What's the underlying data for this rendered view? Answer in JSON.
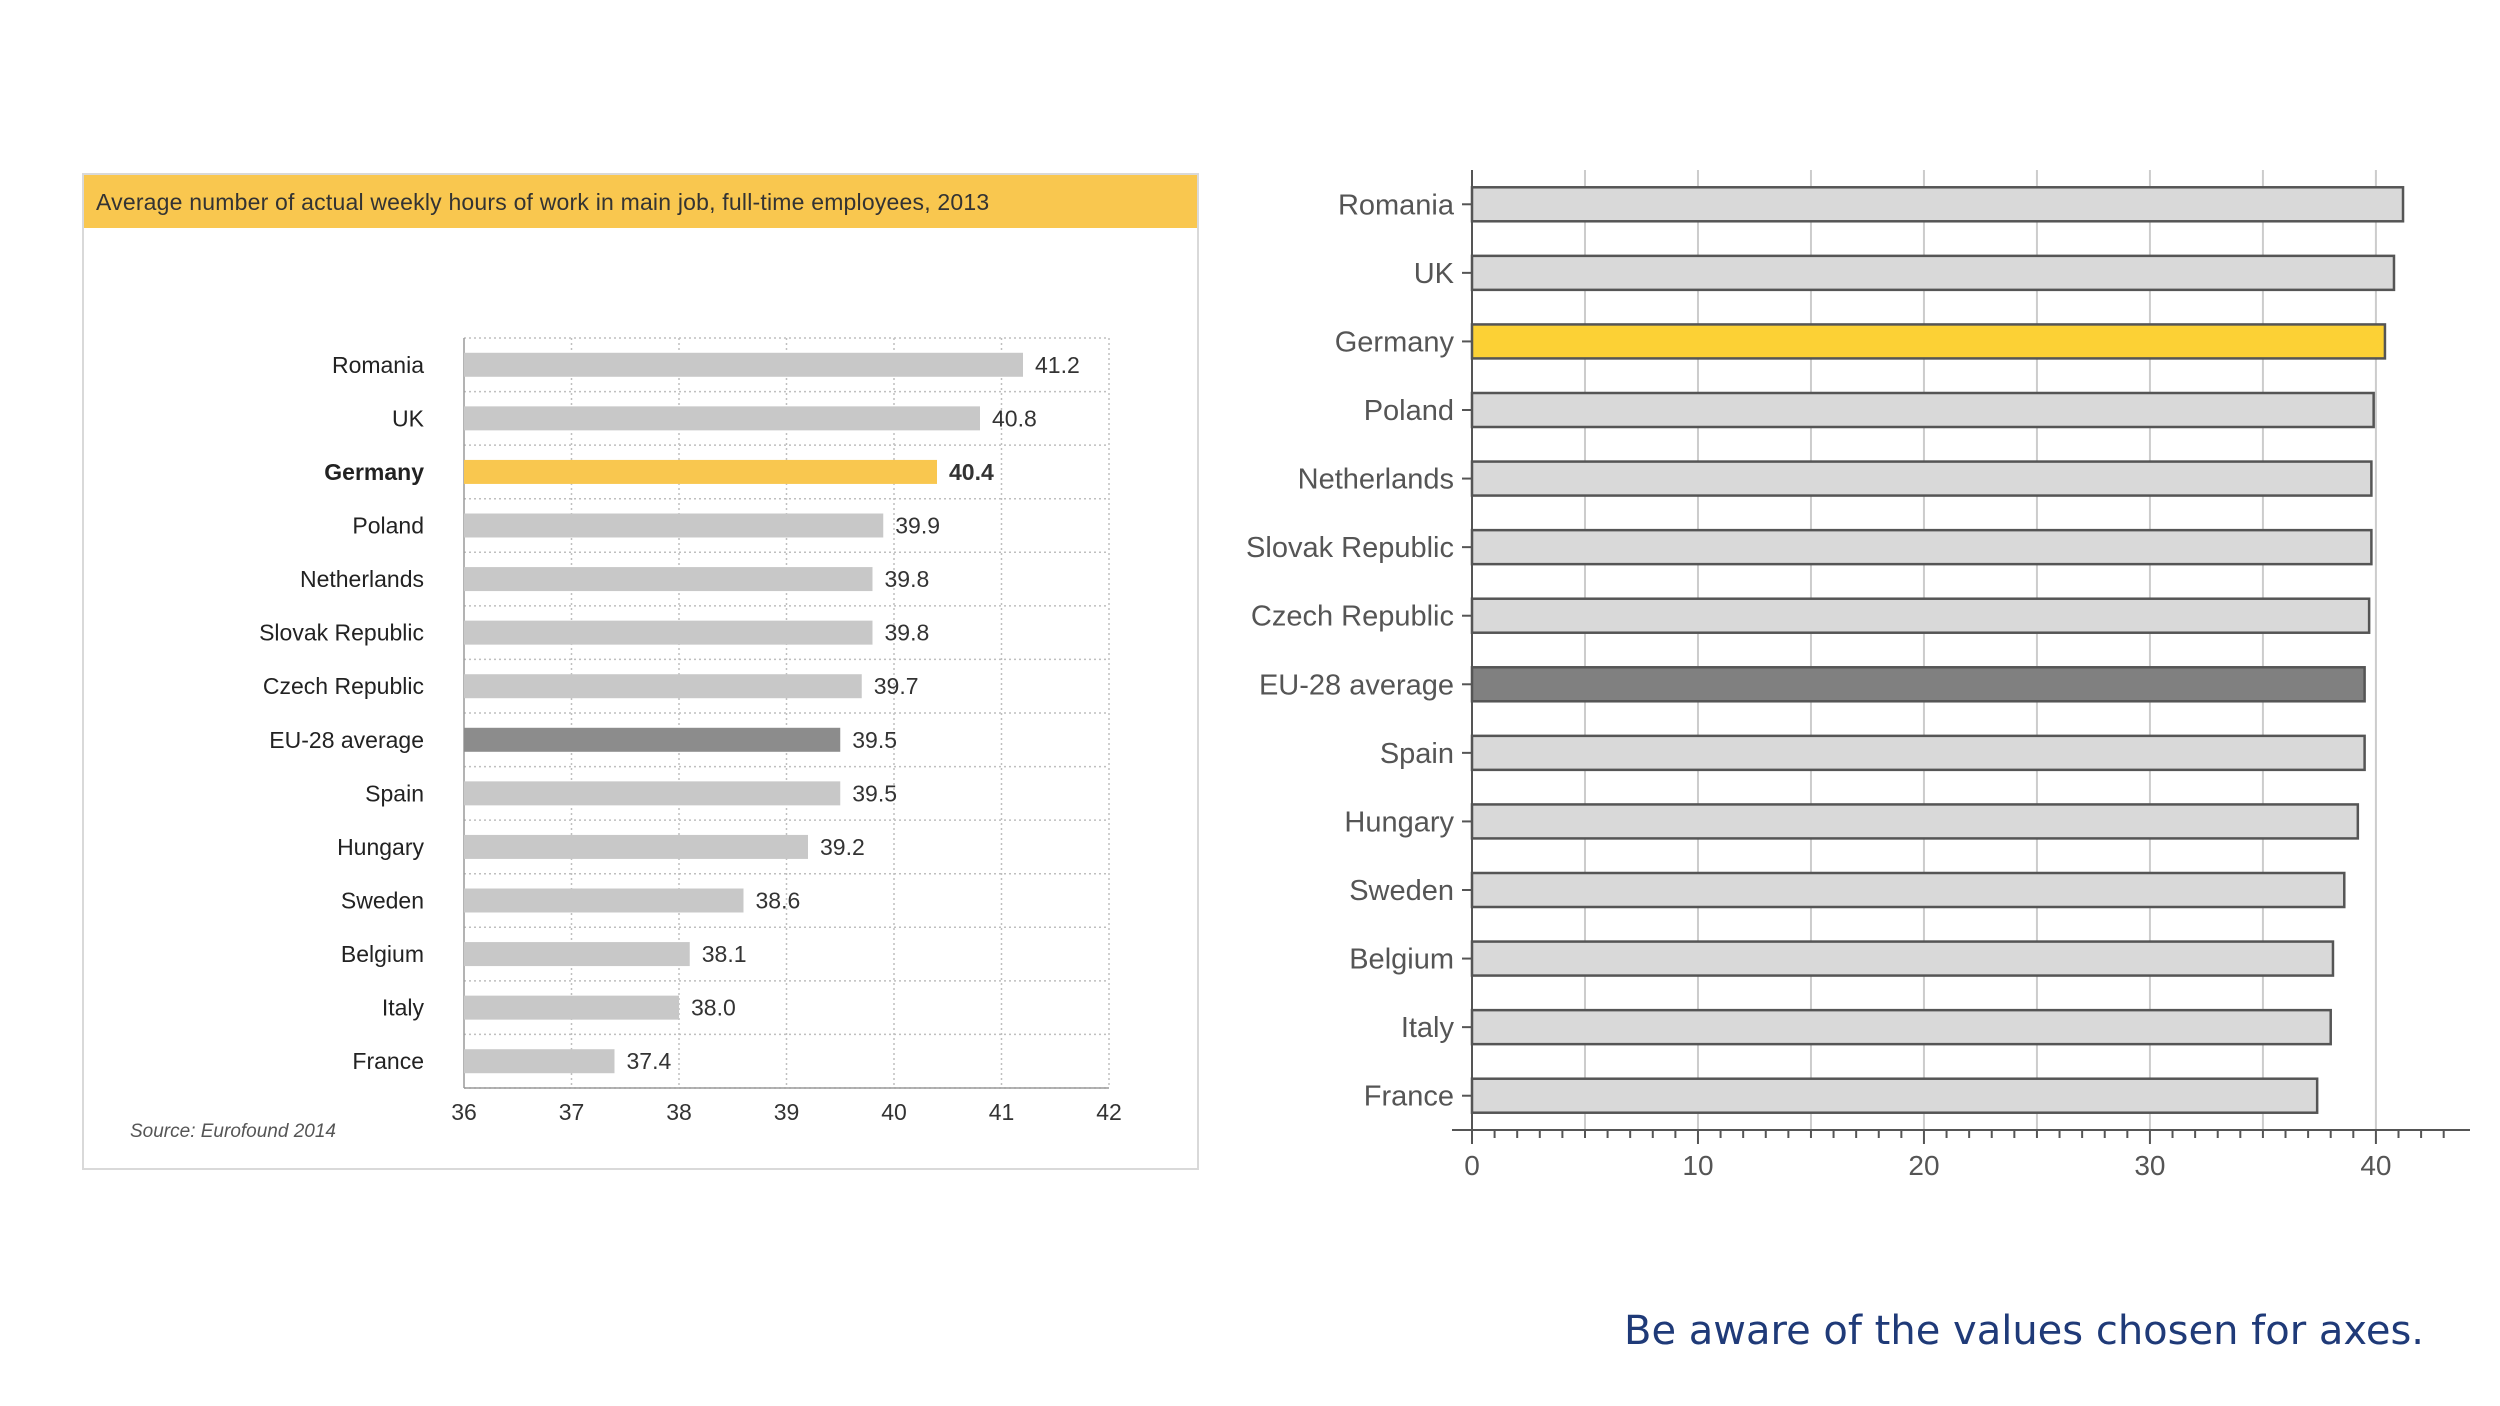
{
  "chart_data": [
    {
      "type": "bar",
      "orientation": "horizontal",
      "title": "Average number of actual weekly hours of work in main job, full-time employees, 2013",
      "categories": [
        "Romania",
        "UK",
        "Germany",
        "Poland",
        "Netherlands",
        "Slovak Republic",
        "Czech Republic",
        "EU-28 average",
        "Spain",
        "Hungary",
        "Sweden",
        "Belgium",
        "Italy",
        "France"
      ],
      "values": [
        41.2,
        40.8,
        40.4,
        39.9,
        39.8,
        39.8,
        39.7,
        39.5,
        39.5,
        39.2,
        38.6,
        38.1,
        38.0,
        37.4
      ],
      "value_labels": [
        "41.2",
        "40.8",
        "40.4",
        "39.9",
        "39.8",
        "39.8",
        "39.7",
        "39.5",
        "39.5",
        "39.2",
        "38.6",
        "38.1",
        "38.0",
        "37.4"
      ],
      "highlight": {
        "Germany": "#f9c74f",
        "EU-28 average": "#8c8c8c"
      },
      "xlim": [
        36,
        42
      ],
      "xticks": [
        "36",
        "37",
        "38",
        "39",
        "40",
        "41",
        "42"
      ],
      "grid": true,
      "source": "Source: Eurofound 2014",
      "colors": {
        "bar": "#c8c8c8",
        "title_band": "#f9c74f"
      }
    },
    {
      "type": "bar",
      "orientation": "horizontal",
      "categories": [
        "Romania",
        "UK",
        "Germany",
        "Poland",
        "Netherlands",
        "Slovak Republic",
        "Czech Republic",
        "EU-28 average",
        "Spain",
        "Hungary",
        "Sweden",
        "Belgium",
        "Italy",
        "France"
      ],
      "values": [
        41.2,
        40.8,
        40.4,
        39.9,
        39.8,
        39.8,
        39.7,
        39.5,
        39.5,
        39.2,
        38.6,
        38.1,
        38.0,
        37.4
      ],
      "highlight": {
        "Germany": "#fcd135",
        "EU-28 average": "#808080"
      },
      "xlim": [
        0,
        43.5
      ],
      "xticks": [
        "0",
        "10",
        "20",
        "30",
        "40"
      ],
      "grid": true,
      "colors": {
        "bar": "#d9d9d9",
        "border": "#555555"
      }
    }
  ],
  "caption": "Be aware of the values chosen for axes."
}
